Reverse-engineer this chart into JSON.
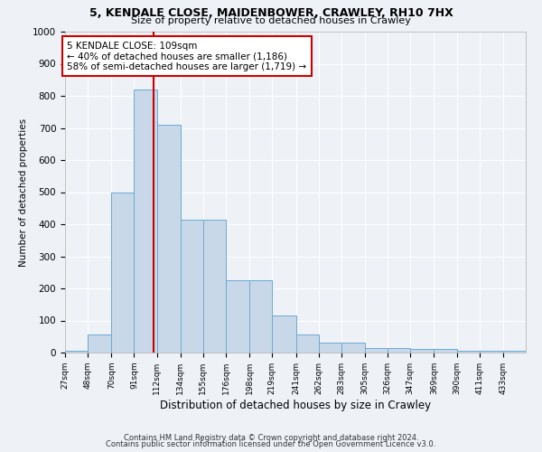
{
  "title1": "5, KENDALE CLOSE, MAIDENBOWER, CRAWLEY, RH10 7HX",
  "title2": "Size of property relative to detached houses in Crawley",
  "xlabel": "Distribution of detached houses by size in Crawley",
  "ylabel": "Number of detached properties",
  "footer1": "Contains HM Land Registry data © Crown copyright and database right 2024.",
  "footer2": "Contains public sector information licensed under the Open Government Licence v3.0.",
  "annotation_line1": "5 KENDALE CLOSE: 109sqm",
  "annotation_line2": "← 40% of detached houses are smaller (1,186)",
  "annotation_line3": "58% of semi-detached houses are larger (1,719) →",
  "property_size": 109,
  "bin_edges": [
    27,
    48,
    70,
    91,
    112,
    134,
    155,
    176,
    198,
    219,
    241,
    262,
    283,
    305,
    326,
    347,
    369,
    390,
    411,
    433,
    454
  ],
  "bar_heights": [
    5,
    55,
    500,
    820,
    710,
    415,
    415,
    225,
    225,
    115,
    55,
    30,
    30,
    15,
    15,
    10,
    10,
    5,
    5,
    5
  ],
  "bar_color": "#c8d8e8",
  "bar_edge_color": "#6aaad4",
  "marker_color": "#cc0000",
  "ylim": [
    0,
    1000
  ],
  "yticks": [
    0,
    100,
    200,
    300,
    400,
    500,
    600,
    700,
    800,
    900,
    1000
  ],
  "bg_color": "#eef2f7",
  "grid_color": "#ffffff",
  "annotation_box_color": "#ffffff",
  "annotation_box_edge": "#cc0000"
}
